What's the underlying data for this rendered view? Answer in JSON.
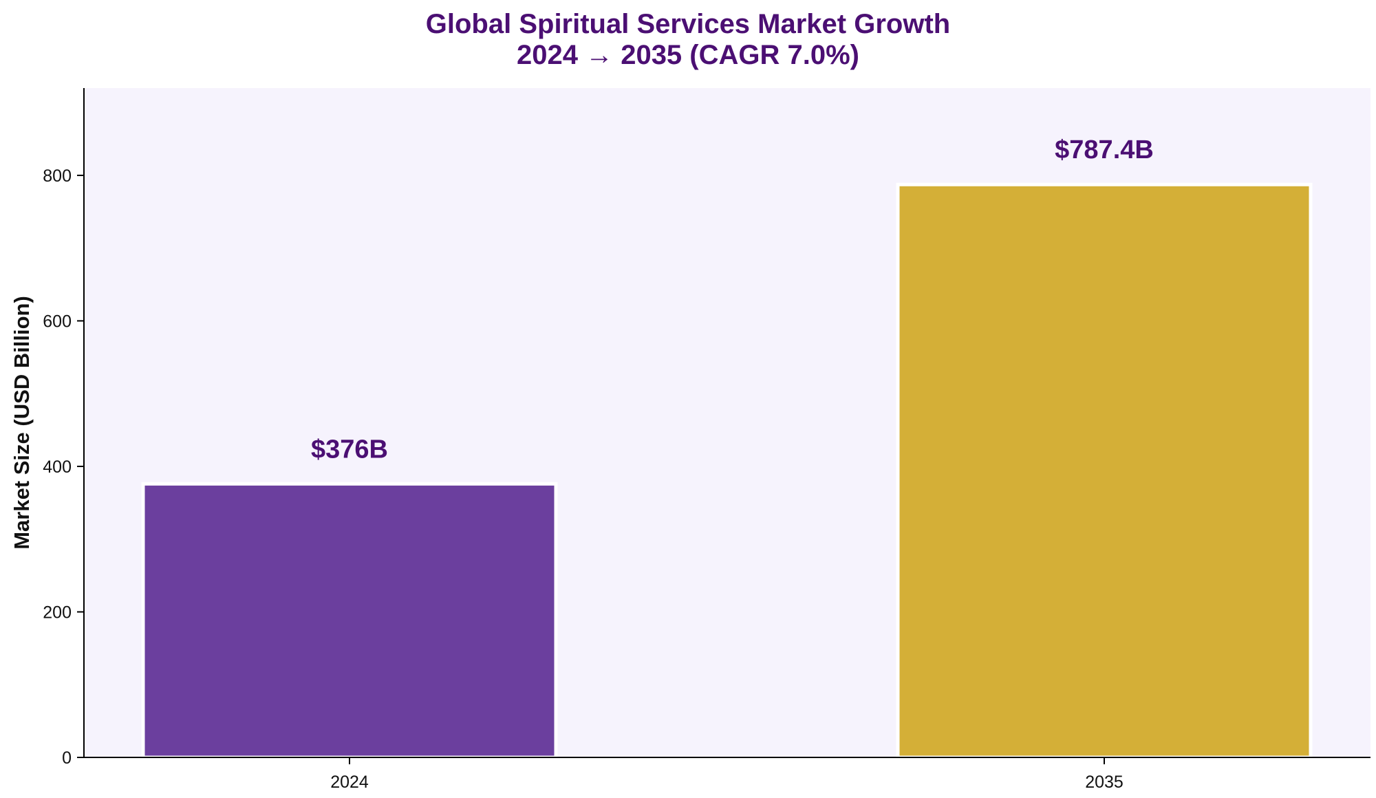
{
  "chart_data": {
    "type": "bar",
    "title": "Global Spiritual Services Market Growth",
    "subtitle": "2024 → 2035 (CAGR 7.0%)",
    "xlabel": "",
    "ylabel": "Market Size (USD Billion)",
    "categories": [
      "2024",
      "2035"
    ],
    "values": [
      376,
      787.4
    ],
    "data_labels": [
      "$376B",
      "$787.4B"
    ],
    "ylim": [
      0,
      920
    ],
    "yticks": [
      0,
      200,
      400,
      600,
      800
    ],
    "ytick_labels": [
      "0",
      "200",
      "400",
      "600",
      "800"
    ],
    "grid": false,
    "legend": "none",
    "colors": {
      "bars": [
        "#6b3f9e",
        "#d4af37"
      ],
      "plot_background": "#f6f3fd",
      "title": "#4b0f73",
      "data_labels": "#4b0f73",
      "axis": "#000000"
    }
  }
}
